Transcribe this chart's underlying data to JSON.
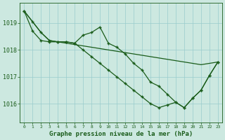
{
  "title": "Graphe pression niveau de la mer (hPa)",
  "background_color": "#cce8e0",
  "grid_color": "#99cccc",
  "line_color": "#1a5c1a",
  "x_labels": [
    "0",
    "1",
    "2",
    "3",
    "4",
    "5",
    "6",
    "7",
    "8",
    "9",
    "10",
    "11",
    "12",
    "13",
    "14",
    "15",
    "16",
    "17",
    "18",
    "19",
    "20",
    "21",
    "22",
    "23"
  ],
  "ylim": [
    1015.3,
    1019.75
  ],
  "yticks": [
    1016,
    1017,
    1018,
    1019
  ],
  "series": [
    [
      1019.45,
      1019.05,
      1018.65,
      1018.35,
      1018.3,
      1018.25,
      1018.2,
      1018.15,
      1018.1,
      1018.05,
      1018.0,
      1017.95,
      1017.9,
      1017.85,
      1017.8,
      1017.75,
      1017.7,
      1017.65,
      1017.6,
      1017.55,
      1017.5,
      1017.45,
      1017.5,
      1017.55
    ],
    [
      1019.45,
      1018.7,
      1018.35,
      1018.3,
      1018.3,
      1018.3,
      1018.25,
      1018.55,
      1018.65,
      1018.85,
      1018.25,
      1018.1,
      1017.85,
      1017.5,
      1017.25,
      1016.8,
      1016.65,
      1016.35,
      1016.05,
      1015.85,
      1016.2,
      1016.5,
      1017.05,
      1017.55
    ],
    [
      1019.45,
      1019.05,
      1018.65,
      1018.35,
      1018.3,
      1018.3,
      1018.25,
      1018.0,
      1017.75,
      1017.5,
      1017.25,
      1017.0,
      1016.75,
      1016.5,
      1016.25,
      1016.0,
      1015.85,
      1015.95,
      1016.05,
      1015.85,
      1016.2,
      1016.5,
      1017.05,
      1017.55
    ]
  ],
  "marker": "+",
  "markersize": 3.5,
  "linewidth": 0.9
}
